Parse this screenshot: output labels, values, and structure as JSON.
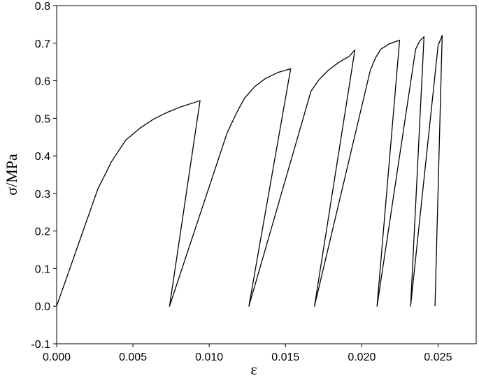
{
  "chart_data": {
    "type": "line",
    "x_label": "ε",
    "y_label": "σ/MPa",
    "x": [
      0,
      0.0027,
      0.0036,
      0.00453,
      0.0055,
      0.00636,
      0.0072,
      0.0081,
      0.0094,
      0.0074,
      0.01117,
      0.0118,
      0.01232,
      0.013,
      0.01369,
      0.0145,
      0.01534,
      0.0126,
      0.01667,
      0.0172,
      0.01781,
      0.0185,
      0.01918,
      0.01955,
      0.0169,
      0.02056,
      0.0209,
      0.02125,
      0.0218,
      0.02248,
      0.021,
      0.02353,
      0.0238,
      0.02408,
      0.0232,
      0.025,
      0.02527,
      0.0248
    ],
    "series": [
      {
        "color": "#000000",
        "values": [
          0,
          0.312,
          0.385,
          0.442,
          0.475,
          0.498,
          0.515,
          0.53,
          0.547,
          0,
          0.461,
          0.515,
          0.554,
          0.585,
          0.606,
          0.622,
          0.632,
          0,
          0.572,
          0.603,
          0.628,
          0.649,
          0.665,
          0.682,
          0,
          0.628,
          0.661,
          0.684,
          0.698,
          0.708,
          0,
          0.684,
          0.706,
          0.717,
          0,
          0.693,
          0.721,
          0
        ]
      }
    ],
    "xlim": [
      0,
      0.0275
    ],
    "ylim": [
      -0.1,
      0.8
    ],
    "xticks": [
      {
        "value": 0,
        "label": "0.000"
      },
      0.005,
      {
        "value": 0.01,
        "label": "0.010"
      },
      0.015,
      {
        "value": 0.02,
        "label": "0.020"
      },
      0.025
    ],
    "yticks": [
      -0.1,
      {
        "value": 0,
        "label": "0.0"
      },
      0.1,
      0.2,
      0.3,
      0.4,
      0.5,
      0.6,
      0.7,
      0.8
    ]
  }
}
